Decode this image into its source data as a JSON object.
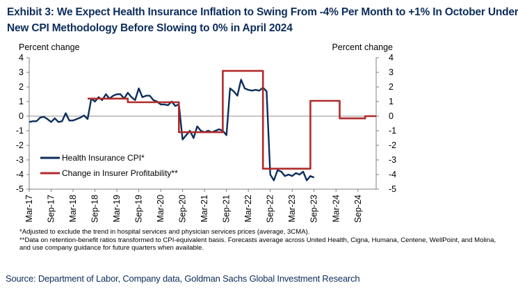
{
  "title": {
    "line1": "Exhibit 3: We Expect Health Insurance Inflation to Swing From -4% Per Month to +1% In October Under the",
    "line2": "New CPI Methodology Before Slowing to 0% in April 2024"
  },
  "chart_data": {
    "type": "line",
    "y_unit_left": "Percent change",
    "y_unit_right": "Percent change",
    "ylim": [
      -5,
      4
    ],
    "yticks": [
      4,
      3,
      2,
      1,
      0,
      -1,
      -2,
      -3,
      -4,
      -5
    ],
    "x_start": 2017.167,
    "x_end": 2025.083,
    "xticks": [
      "Mar-17",
      "Sep-17",
      "Mar-18",
      "Sep-18",
      "Mar-19",
      "Sep-19",
      "Mar-20",
      "Sep-20",
      "Mar-21",
      "Sep-21",
      "Mar-22",
      "Sep-22",
      "Mar-23",
      "Sep-23",
      "Mar-24",
      "Sep-24"
    ],
    "grid": false,
    "legend_position": "bottom-left",
    "series": [
      {
        "name": "Health Insurance CPI*",
        "color": "#0d2d5c",
        "x": [
          2017.167,
          2017.25,
          2017.333,
          2017.417,
          2017.5,
          2017.583,
          2017.667,
          2017.75,
          2017.833,
          2017.917,
          2018.0,
          2018.083,
          2018.167,
          2018.25,
          2018.333,
          2018.417,
          2018.5,
          2018.583,
          2018.667,
          2018.75,
          2018.833,
          2018.917,
          2019.0,
          2019.083,
          2019.167,
          2019.25,
          2019.333,
          2019.417,
          2019.5,
          2019.583,
          2019.667,
          2019.75,
          2019.833,
          2019.917,
          2020.0,
          2020.083,
          2020.167,
          2020.25,
          2020.333,
          2020.417,
          2020.5,
          2020.583,
          2020.667,
          2020.75,
          2020.833,
          2020.917,
          2021.0,
          2021.083,
          2021.167,
          2021.25,
          2021.333,
          2021.417,
          2021.5,
          2021.583,
          2021.667,
          2021.75,
          2021.833,
          2021.917,
          2022.0,
          2022.083,
          2022.167,
          2022.25,
          2022.333,
          2022.417,
          2022.5,
          2022.583,
          2022.667,
          2022.75,
          2022.833,
          2022.917,
          2023.0,
          2023.083,
          2023.167,
          2023.25,
          2023.333,
          2023.417,
          2023.5,
          2023.583,
          2023.667
        ],
        "values": [
          -0.4,
          -0.35,
          -0.35,
          -0.1,
          -0.05,
          -0.2,
          -0.4,
          -0.15,
          -0.4,
          -0.35,
          0.2,
          -0.3,
          -0.3,
          -0.2,
          -0.1,
          0.05,
          -0.2,
          1.2,
          1.0,
          1.3,
          1.1,
          1.5,
          1.2,
          1.4,
          1.5,
          1.5,
          1.2,
          1.6,
          1.3,
          1.1,
          1.9,
          1.3,
          1.4,
          1.4,
          1.1,
          1.0,
          0.8,
          0.8,
          0.75,
          1.0,
          0.7,
          0.8,
          -1.6,
          -1.3,
          -1.0,
          -1.5,
          -0.7,
          -1.0,
          -1.1,
          -1.0,
          -1.1,
          -1.0,
          -0.9,
          -1.0,
          -1.3,
          1.9,
          1.7,
          1.4,
          2.5,
          1.9,
          1.8,
          1.75,
          1.8,
          1.75,
          1.95,
          1.7,
          -4.0,
          -4.4,
          -3.7,
          -3.8,
          -4.1,
          -4.0,
          -4.1,
          -3.9,
          -4.0,
          -3.8,
          -4.4,
          -4.1,
          -4.2
        ]
      },
      {
        "name": "Change in Insurer Profitability**",
        "color": "#b12a2a",
        "x": [
          2018.5,
          2019.417,
          2019.417,
          2020.583,
          2020.583,
          2021.583,
          2021.583,
          2022.5,
          2022.5,
          2023.583,
          2023.583,
          2024.25,
          2024.25,
          2024.833,
          2024.833,
          2025.083
        ],
        "values": [
          1.2,
          1.2,
          0.95,
          0.95,
          -1.1,
          -1.1,
          3.1,
          3.1,
          -3.6,
          -3.6,
          1.05,
          1.05,
          -0.15,
          -0.15,
          0.0,
          0.0
        ]
      }
    ]
  },
  "footnotes": [
    "*Adjusted to exclude the trend in hospital services and physician services prices (average, 3CMA).",
    "**Data on retention-benefit ratios transformed to CPI-equivalent basis. Forecasts average across United Health, Cigna, Humana, Centene, WellPoint, and Molina, and use company guidance for future quarters when available."
  ],
  "source": "Source: Department of Labor, Company data, Goldman Sachs Global Investment Research"
}
